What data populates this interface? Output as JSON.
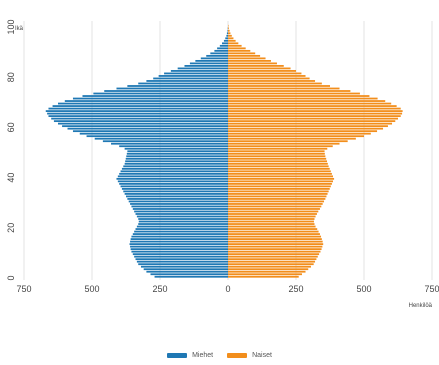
{
  "chart_data": {
    "type": "bar",
    "orientation": "horizontal",
    "subtype": "population-pyramid",
    "y_axis": {
      "label": "Ikä",
      "ticks": [
        "0",
        "20",
        "40",
        "60",
        "80",
        "100"
      ],
      "range": [
        0,
        100
      ]
    },
    "x_axis": {
      "label": "Henkilöä",
      "ticks": [
        "750",
        "500",
        "250",
        "0",
        "250",
        "500",
        "750"
      ],
      "range": [
        -750,
        750
      ]
    },
    "grid": true,
    "legend_position": "bottom-center",
    "ages": [
      0,
      1,
      2,
      3,
      4,
      5,
      6,
      7,
      8,
      9,
      10,
      11,
      12,
      13,
      14,
      15,
      16,
      17,
      18,
      19,
      20,
      21,
      22,
      23,
      24,
      25,
      26,
      27,
      28,
      29,
      30,
      31,
      32,
      33,
      34,
      35,
      36,
      37,
      38,
      39,
      40,
      41,
      42,
      43,
      44,
      45,
      46,
      47,
      48,
      49,
      50,
      51,
      52,
      53,
      54,
      55,
      56,
      57,
      58,
      59,
      60,
      61,
      62,
      63,
      64,
      65,
      66,
      67,
      68,
      69,
      70,
      71,
      72,
      73,
      74,
      75,
      76,
      77,
      78,
      79,
      80,
      81,
      82,
      83,
      84,
      85,
      86,
      87,
      88,
      89,
      90,
      91,
      92,
      93,
      94,
      95,
      96,
      97,
      98,
      99,
      100
    ],
    "series": [
      {
        "name": "Miehet",
        "color": "#1f78b4",
        "side": "left",
        "values": [
          270,
          285,
          300,
          310,
          320,
          330,
          335,
          340,
          345,
          350,
          355,
          358,
          360,
          362,
          360,
          358,
          355,
          350,
          345,
          340,
          335,
          330,
          328,
          330,
          335,
          340,
          345,
          350,
          355,
          360,
          365,
          370,
          375,
          380,
          385,
          390,
          395,
          400,
          405,
          410,
          405,
          400,
          395,
          390,
          385,
          380,
          378,
          376,
          374,
          372,
          370,
          380,
          400,
          430,
          460,
          490,
          520,
          545,
          570,
          590,
          610,
          625,
          640,
          650,
          660,
          665,
          670,
          660,
          645,
          625,
          600,
          570,
          535,
          495,
          455,
          410,
          370,
          330,
          300,
          275,
          255,
          235,
          210,
          185,
          160,
          140,
          120,
          100,
          80,
          65,
          50,
          40,
          30,
          22,
          15,
          10,
          6,
          4,
          2,
          1,
          0
        ]
      },
      {
        "name": "Naiset",
        "color": "#f28e1c",
        "side": "right",
        "values": [
          260,
          272,
          285,
          295,
          305,
          315,
          320,
          325,
          330,
          335,
          340,
          344,
          347,
          350,
          348,
          345,
          342,
          338,
          333,
          328,
          322,
          318,
          316,
          318,
          322,
          327,
          332,
          338,
          343,
          348,
          353,
          358,
          362,
          366,
          370,
          374,
          378,
          382,
          386,
          390,
          386,
          382,
          378,
          374,
          370,
          367,
          364,
          361,
          358,
          356,
          355,
          365,
          385,
          410,
          440,
          470,
          500,
          525,
          548,
          570,
          588,
          603,
          615,
          625,
          635,
          640,
          642,
          635,
          620,
          600,
          578,
          550,
          520,
          485,
          450,
          410,
          375,
          345,
          320,
          300,
          285,
          270,
          250,
          230,
          205,
          180,
          158,
          138,
          118,
          100,
          82,
          65,
          50,
          38,
          28,
          20,
          14,
          9,
          6,
          3,
          2
        ]
      }
    ]
  }
}
